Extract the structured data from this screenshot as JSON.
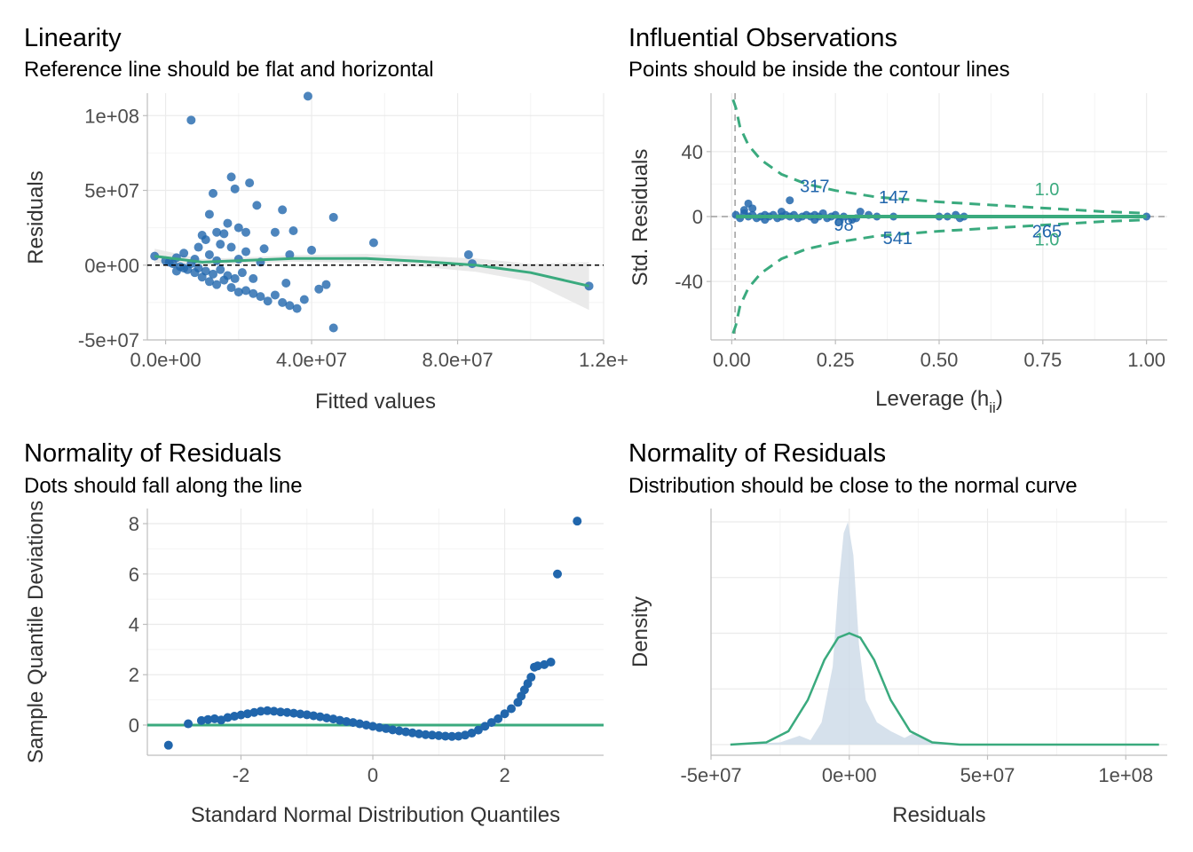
{
  "colors": {
    "points": "#2166ac",
    "fit": "#3aaa7e",
    "band": "#e6e6e6",
    "density_fill": "#cfdce9",
    "text": "#000000",
    "tick": "#4d4d4d"
  },
  "chart_data": [
    {
      "id": "linearity",
      "type": "scatter",
      "title": "Linearity",
      "subtitle": "Reference line should be flat and horizontal",
      "xlabel": "Fitted values",
      "ylabel": "Residuals",
      "xlim": [
        -5000000,
        120000000
      ],
      "ylim": [
        -50000000,
        115000000
      ],
      "x_ticks": [
        0,
        40000000,
        80000000,
        120000000
      ],
      "x_tick_labels": [
        "0.0e+00",
        "4.0e+07",
        "8.0e+07",
        "1.2e+"
      ],
      "y_ticks": [
        -50000000,
        0,
        50000000,
        100000000
      ],
      "y_tick_labels": [
        "-5e+07",
        "0e+00",
        "5e+07",
        "1e+08"
      ],
      "reference_line_y": 0,
      "points": [
        [
          7000000,
          97000000
        ],
        [
          39000000,
          113000000
        ],
        [
          18000000,
          59000000
        ],
        [
          19000000,
          51000000
        ],
        [
          23000000,
          55000000
        ],
        [
          13000000,
          48000000
        ],
        [
          25000000,
          40000000
        ],
        [
          32000000,
          37000000
        ],
        [
          46000000,
          32000000
        ],
        [
          12000000,
          34000000
        ],
        [
          17000000,
          28000000
        ],
        [
          20000000,
          25000000
        ],
        [
          14000000,
          22000000
        ],
        [
          10000000,
          20000000
        ],
        [
          16000000,
          21000000
        ],
        [
          22000000,
          22000000
        ],
        [
          30000000,
          22000000
        ],
        [
          35000000,
          23000000
        ],
        [
          11000000,
          17000000
        ],
        [
          15000000,
          14000000
        ],
        [
          18000000,
          12000000
        ],
        [
          22000000,
          9000000
        ],
        [
          27000000,
          11000000
        ],
        [
          34000000,
          7000000
        ],
        [
          40000000,
          10000000
        ],
        [
          57000000,
          15000000
        ],
        [
          83000000,
          7000000
        ],
        [
          9000000,
          12000000
        ],
        [
          5000000,
          8000000
        ],
        [
          12000000,
          7000000
        ],
        [
          3000000,
          5000000
        ],
        [
          8000000,
          4000000
        ],
        [
          14000000,
          3000000
        ],
        [
          20000000,
          4000000
        ],
        [
          26000000,
          2000000
        ],
        [
          -3000000,
          6000000
        ],
        [
          0,
          3000000
        ],
        [
          2000000,
          1000000
        ],
        [
          4000000,
          -1000000
        ],
        [
          6000000,
          -3000000
        ],
        [
          8000000,
          -5000000
        ],
        [
          10000000,
          -8000000
        ],
        [
          12000000,
          -11000000
        ],
        [
          14000000,
          -13000000
        ],
        [
          16000000,
          -10000000
        ],
        [
          18000000,
          -15000000
        ],
        [
          20000000,
          -18000000
        ],
        [
          22000000,
          -17000000
        ],
        [
          24000000,
          -19000000
        ],
        [
          26000000,
          -21000000
        ],
        [
          28000000,
          -24000000
        ],
        [
          30000000,
          -20000000
        ],
        [
          32000000,
          -25000000
        ],
        [
          34000000,
          -27000000
        ],
        [
          36000000,
          -29000000
        ],
        [
          38000000,
          -23000000
        ],
        [
          42000000,
          -16000000
        ],
        [
          44000000,
          -13000000
        ],
        [
          46000000,
          -42000000
        ],
        [
          33000000,
          -12000000
        ],
        [
          24000000,
          -9000000
        ],
        [
          9000000,
          -2000000
        ],
        [
          11000000,
          -4000000
        ],
        [
          13000000,
          -6000000
        ],
        [
          15000000,
          -3000000
        ],
        [
          17000000,
          -7000000
        ],
        [
          19000000,
          -9000000
        ],
        [
          21000000,
          -5000000
        ],
        [
          7000000,
          1000000
        ],
        [
          5000000,
          -2000000
        ],
        [
          1000000,
          2000000
        ],
        [
          3000000,
          -4000000
        ],
        [
          84000000,
          1000000
        ],
        [
          116000000,
          -14000000
        ]
      ],
      "fit_line": [
        [
          -3000000,
          6000000
        ],
        [
          10000000,
          2000000
        ],
        [
          20000000,
          3000000
        ],
        [
          35000000,
          4500000
        ],
        [
          55000000,
          4500000
        ],
        [
          70000000,
          2500000
        ],
        [
          85000000,
          0
        ],
        [
          100000000,
          -5000000
        ],
        [
          116000000,
          -14000000
        ]
      ],
      "band_width": [
        [
          -3000000,
          5000000
        ],
        [
          10000000,
          2000000
        ],
        [
          30000000,
          2000000
        ],
        [
          55000000,
          3000000
        ],
        [
          80000000,
          4000000
        ],
        [
          100000000,
          6000000
        ],
        [
          116000000,
          16000000
        ]
      ]
    },
    {
      "id": "influential",
      "type": "scatter",
      "title": "Influential Observations",
      "subtitle": "Points should be inside the contour lines",
      "xlabel": "Leverage (h",
      "xlabel_sub": "ii",
      "xlabel_close": ")",
      "ylabel": "Std. Residuals",
      "xlim": [
        -0.05,
        1.05
      ],
      "ylim": [
        -76,
        76
      ],
      "x_ticks": [
        0,
        0.25,
        0.5,
        0.75,
        1.0
      ],
      "x_tick_labels": [
        "0.00",
        "0.25",
        "0.50",
        "0.75",
        "1.00"
      ],
      "y_ticks": [
        -40,
        0,
        40
      ],
      "y_tick_labels": [
        "-40",
        "0",
        "40"
      ],
      "ref_vline_x": 0.008,
      "ref_hline_y": 0,
      "points": [
        [
          0.01,
          1
        ],
        [
          0.02,
          -1
        ],
        [
          0.03,
          2
        ],
        [
          0.04,
          0
        ],
        [
          0.05,
          1
        ],
        [
          0.06,
          -1
        ],
        [
          0.07,
          0
        ],
        [
          0.08,
          1
        ],
        [
          0.09,
          0
        ],
        [
          0.1,
          1
        ],
        [
          0.11,
          -1
        ],
        [
          0.12,
          0
        ],
        [
          0.13,
          1
        ],
        [
          0.14,
          0
        ],
        [
          0.15,
          1
        ],
        [
          0.16,
          -1
        ],
        [
          0.17,
          0
        ],
        [
          0.18,
          1
        ],
        [
          0.19,
          0
        ],
        [
          0.2,
          1
        ],
        [
          0.21,
          0
        ],
        [
          0.22,
          2
        ],
        [
          0.23,
          -1
        ],
        [
          0.24,
          0
        ],
        [
          0.25,
          1
        ],
        [
          0.27,
          0
        ],
        [
          0.3,
          -1
        ],
        [
          0.33,
          1
        ],
        [
          0.35,
          0
        ],
        [
          0.39,
          0
        ],
        [
          0.5,
          0
        ],
        [
          0.52,
          0
        ],
        [
          0.54,
          1
        ],
        [
          0.55,
          -1
        ],
        [
          0.56,
          0
        ],
        [
          1.0,
          0
        ],
        [
          0.04,
          8
        ],
        [
          0.03,
          4
        ],
        [
          0.14,
          10
        ],
        [
          0.08,
          -2
        ],
        [
          0.12,
          3
        ],
        [
          0.2,
          -2
        ],
        [
          0.29,
          -2
        ],
        [
          0.31,
          3
        ],
        [
          0.26,
          -3
        ],
        [
          0.05,
          5
        ]
      ],
      "labels": [
        {
          "text": "317",
          "x": 0.2,
          "y": 19
        },
        {
          "text": "147",
          "x": 0.39,
          "y": 12
        },
        {
          "text": "98",
          "x": 0.27,
          "y": -5
        },
        {
          "text": "541",
          "x": 0.4,
          "y": -13
        },
        {
          "text": "265",
          "x": 0.76,
          "y": -9
        }
      ],
      "contour_labels": [
        {
          "text": "1.0",
          "x": 0.76,
          "y": 17
        },
        {
          "text": "1.0",
          "x": 0.76,
          "y": -14
        }
      ],
      "fit_line": [
        [
          0.01,
          0
        ],
        [
          1.0,
          0
        ]
      ],
      "contour_upper": [
        [
          0.003,
          72
        ],
        [
          0.01,
          67
        ],
        [
          0.02,
          55
        ],
        [
          0.04,
          44
        ],
        [
          0.07,
          35
        ],
        [
          0.12,
          26
        ],
        [
          0.18,
          20
        ],
        [
          0.25,
          16
        ],
        [
          0.35,
          12
        ],
        [
          0.5,
          9
        ],
        [
          0.7,
          6
        ],
        [
          0.9,
          3
        ],
        [
          1.0,
          2
        ]
      ],
      "contour_lower": [
        [
          0.003,
          -72
        ],
        [
          0.01,
          -67
        ],
        [
          0.02,
          -55
        ],
        [
          0.04,
          -44
        ],
        [
          0.07,
          -35
        ],
        [
          0.12,
          -26
        ],
        [
          0.18,
          -20
        ],
        [
          0.25,
          -16
        ],
        [
          0.35,
          -12
        ],
        [
          0.5,
          -9
        ],
        [
          0.7,
          -6
        ],
        [
          0.9,
          -3
        ],
        [
          1.0,
          -2
        ]
      ]
    },
    {
      "id": "qq",
      "type": "scatter",
      "title": "Normality of Residuals",
      "subtitle": "Dots should fall along the line",
      "xlabel": "Standard Normal Distribution Quantiles",
      "ylabel": "Sample Quantile Deviations",
      "xlim": [
        -3.42,
        3.5
      ],
      "ylim": [
        -1.2,
        8.6
      ],
      "x_ticks": [
        -2,
        0,
        2
      ],
      "x_tick_labels": [
        "-2",
        "0",
        "2"
      ],
      "y_ticks": [
        0,
        2,
        4,
        6,
        8
      ],
      "y_tick_labels": [
        "0",
        "2",
        "4",
        "6",
        "8"
      ],
      "reference_line_y": 0,
      "points": [
        [
          -3.1,
          -0.8
        ],
        [
          -2.8,
          0.05
        ],
        [
          -2.6,
          0.18
        ],
        [
          -2.5,
          0.22
        ],
        [
          -2.4,
          0.25
        ],
        [
          -2.3,
          0.2
        ],
        [
          -2.2,
          0.3
        ],
        [
          -2.1,
          0.35
        ],
        [
          -2.0,
          0.4
        ],
        [
          -1.9,
          0.45
        ],
        [
          -1.8,
          0.5
        ],
        [
          -1.7,
          0.55
        ],
        [
          -1.6,
          0.57
        ],
        [
          -1.5,
          0.55
        ],
        [
          -1.4,
          0.52
        ],
        [
          -1.3,
          0.5
        ],
        [
          -1.2,
          0.47
        ],
        [
          -1.1,
          0.44
        ],
        [
          -1.0,
          0.41
        ],
        [
          -0.9,
          0.37
        ],
        [
          -0.8,
          0.33
        ],
        [
          -0.7,
          0.28
        ],
        [
          -0.6,
          0.24
        ],
        [
          -0.5,
          0.19
        ],
        [
          -0.4,
          0.14
        ],
        [
          -0.3,
          0.1
        ],
        [
          -0.2,
          0.05
        ],
        [
          -0.1,
          0.0
        ],
        [
          0.0,
          -0.05
        ],
        [
          0.1,
          -0.1
        ],
        [
          0.2,
          -0.14
        ],
        [
          0.3,
          -0.19
        ],
        [
          0.4,
          -0.23
        ],
        [
          0.5,
          -0.27
        ],
        [
          0.6,
          -0.31
        ],
        [
          0.7,
          -0.35
        ],
        [
          0.8,
          -0.38
        ],
        [
          0.9,
          -0.4
        ],
        [
          1.0,
          -0.42
        ],
        [
          1.1,
          -0.44
        ],
        [
          1.2,
          -0.45
        ],
        [
          1.3,
          -0.44
        ],
        [
          1.4,
          -0.4
        ],
        [
          1.5,
          -0.32
        ],
        [
          1.6,
          -0.2
        ],
        [
          1.7,
          -0.05
        ],
        [
          1.8,
          0.1
        ],
        [
          1.9,
          0.25
        ],
        [
          2.0,
          0.45
        ],
        [
          2.1,
          0.65
        ],
        [
          2.2,
          0.9
        ],
        [
          2.25,
          1.15
        ],
        [
          2.3,
          1.4
        ],
        [
          2.35,
          1.65
        ],
        [
          2.4,
          1.9
        ],
        [
          2.45,
          2.3
        ],
        [
          2.5,
          2.35
        ],
        [
          2.6,
          2.4
        ],
        [
          2.7,
          2.5
        ],
        [
          2.8,
          6.0
        ],
        [
          3.1,
          8.1
        ]
      ]
    },
    {
      "id": "density",
      "type": "area",
      "title": "Normality of Residuals",
      "subtitle": "Distribution should be close to the normal curve",
      "xlabel": "Residuals",
      "ylabel": "Density",
      "xlim": [
        -50000000,
        115000000
      ],
      "ylim": [
        0,
        1
      ],
      "x_ticks": [
        -50000000,
        0,
        50000000,
        100000000
      ],
      "x_tick_labels": [
        "-5e+07",
        "0e+00",
        "5e+07",
        "1e+08"
      ],
      "density_empirical": [
        [
          -43000000,
          0.0
        ],
        [
          -25000000,
          0.01
        ],
        [
          -18000000,
          0.04
        ],
        [
          -14000000,
          0.02
        ],
        [
          -10000000,
          0.1
        ],
        [
          -6000000,
          0.35
        ],
        [
          -4000000,
          0.7
        ],
        [
          -2000000,
          0.95
        ],
        [
          -500000,
          1.0
        ],
        [
          1500000,
          0.85
        ],
        [
          3500000,
          0.45
        ],
        [
          6000000,
          0.2
        ],
        [
          10000000,
          0.1
        ],
        [
          15000000,
          0.06
        ],
        [
          20000000,
          0.03
        ],
        [
          23000000,
          0.05
        ],
        [
          30000000,
          0.01
        ],
        [
          40000000,
          0.0
        ],
        [
          112000000,
          0.0
        ]
      ],
      "normal_curve": [
        [
          -43000000,
          0.0
        ],
        [
          -30000000,
          0.01
        ],
        [
          -22000000,
          0.06
        ],
        [
          -15000000,
          0.2
        ],
        [
          -9000000,
          0.38
        ],
        [
          -4000000,
          0.48
        ],
        [
          0,
          0.5
        ],
        [
          4000000,
          0.48
        ],
        [
          9000000,
          0.38
        ],
        [
          15000000,
          0.2
        ],
        [
          22000000,
          0.06
        ],
        [
          30000000,
          0.01
        ],
        [
          40000000,
          0.0
        ],
        [
          112000000,
          0.0
        ]
      ]
    }
  ]
}
